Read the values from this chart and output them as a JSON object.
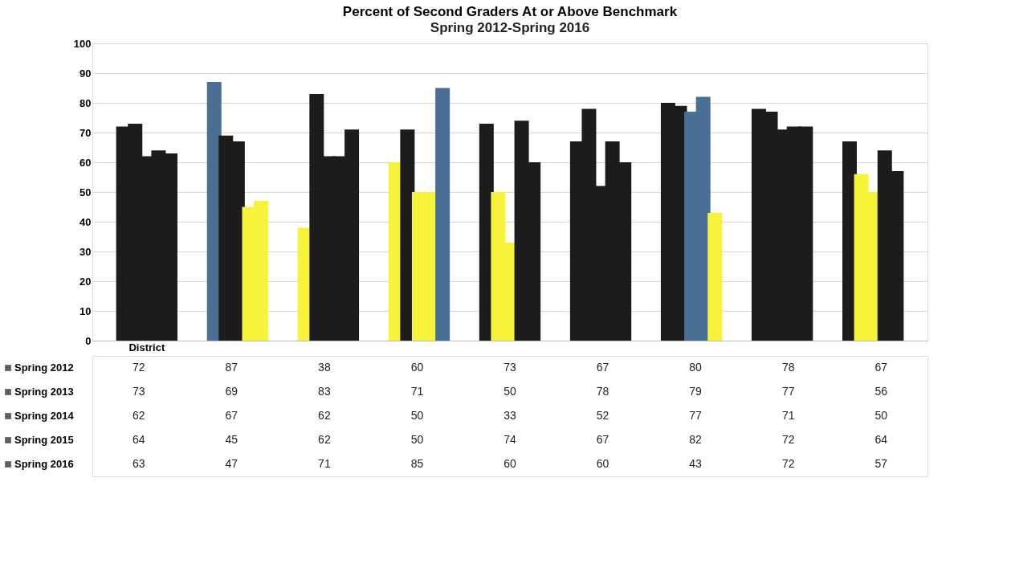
{
  "chart_data": {
    "type": "bar",
    "title": "Percent of Second Graders At or Above Benchmark",
    "subtitle": "Spring 2012-Spring 2016",
    "categories": [
      "District",
      null,
      null,
      null,
      null,
      null,
      null,
      null,
      null
    ],
    "series": [
      {
        "name": "Spring 2012",
        "color": "#1c1c1c",
        "values": [
          72,
          87,
          38,
          60,
          73,
          67,
          80,
          78,
          67
        ],
        "colors": [
          "#1c1c1c",
          "#4a6f94",
          "#f7f23a",
          "#f7f23a",
          "#1c1c1c",
          "#1c1c1c",
          "#1c1c1c",
          "#1c1c1c",
          "#1c1c1c"
        ]
      },
      {
        "name": "Spring 2013",
        "color": "#1c1c1c",
        "values": [
          73,
          69,
          83,
          71,
          50,
          78,
          79,
          77,
          56
        ],
        "colors": [
          "#1c1c1c",
          "#1c1c1c",
          "#1c1c1c",
          "#1c1c1c",
          "#f7f23a",
          "#1c1c1c",
          "#1c1c1c",
          "#1c1c1c",
          "#f7f23a"
        ]
      },
      {
        "name": "Spring 2014",
        "color": "#1c1c1c",
        "values": [
          62,
          67,
          62,
          50,
          33,
          52,
          77,
          71,
          50
        ],
        "colors": [
          "#1c1c1c",
          "#1c1c1c",
          "#1c1c1c",
          "#f7f23a",
          "#f7f23a",
          "#1c1c1c",
          "#4a6f94",
          "#1c1c1c",
          "#f7f23a"
        ]
      },
      {
        "name": "Spring 2015",
        "color": "#1c1c1c",
        "values": [
          64,
          45,
          62,
          50,
          74,
          67,
          82,
          72,
          64
        ],
        "colors": [
          "#1c1c1c",
          "#f7f23a",
          "#1c1c1c",
          "#f7f23a",
          "#1c1c1c",
          "#1c1c1c",
          "#4a6f94",
          "#1c1c1c",
          "#1c1c1c"
        ]
      },
      {
        "name": "Spring 2016",
        "color": "#1c1c1c",
        "values": [
          63,
          47,
          71,
          85,
          60,
          60,
          43,
          72,
          57
        ],
        "colors": [
          "#1c1c1c",
          "#f7f23a",
          "#1c1c1c",
          "#4a6f94",
          "#1c1c1c",
          "#1c1c1c",
          "#f7f23a",
          "#1c1c1c",
          "#1c1c1c"
        ]
      }
    ],
    "ylim": [
      0,
      100
    ],
    "yticks": [
      0,
      10,
      20,
      30,
      40,
      50,
      60,
      70,
      80,
      90,
      100
    ],
    "grid": "y",
    "legend": "bottom",
    "data_labels": true
  }
}
